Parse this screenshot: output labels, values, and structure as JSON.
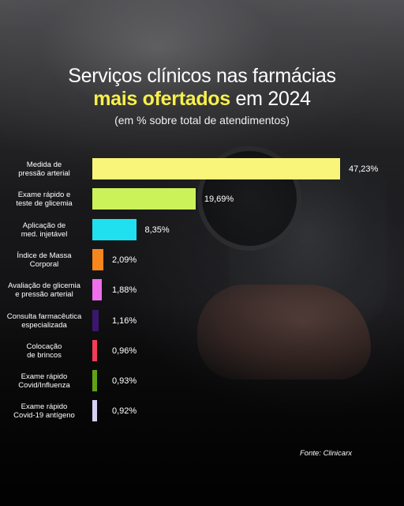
{
  "header": {
    "title_line1": "Serviços clínicos nas farmácias",
    "title_highlight": "mais ofertados",
    "title_rest": "em 2024",
    "subtitle": "(em % sobre total de atendimentos)"
  },
  "source": "Fonte: Clinicarx",
  "chart_data": {
    "type": "bar",
    "orientation": "horizontal",
    "unit": "%",
    "xlim": [
      0,
      47.23
    ],
    "categories": [
      [
        "Medida de",
        "pressão arterial"
      ],
      [
        "Exame rápido e",
        "teste de glicemia"
      ],
      [
        "Aplicação de",
        "med. injetável"
      ],
      [
        "Índice de Massa",
        "Corporal"
      ],
      [
        "Avaliação de glicemia",
        "e pressão arterial"
      ],
      [
        "Consulta farmacêutica",
        "especializada"
      ],
      [
        "Colocação",
        "de brincos"
      ],
      [
        "Exame rápido",
        "Covid/Influenza"
      ],
      [
        "Exame rápido",
        "Covid-19 antígeno"
      ]
    ],
    "values": [
      47.23,
      19.69,
      8.35,
      2.09,
      1.88,
      1.16,
      0.96,
      0.93,
      0.92
    ],
    "value_labels": [
      "47,23%",
      "19,69%",
      "8,35%",
      "2,09%",
      "1,88%",
      "1,16%",
      "0,96%",
      "0,93%",
      "0,92%"
    ],
    "colors": [
      "#f8f57a",
      "#ccf25a",
      "#20e0f0",
      "#f7861c",
      "#ee6fea",
      "#3b176c",
      "#f23c58",
      "#5fa314",
      "#d6d0f4"
    ]
  }
}
